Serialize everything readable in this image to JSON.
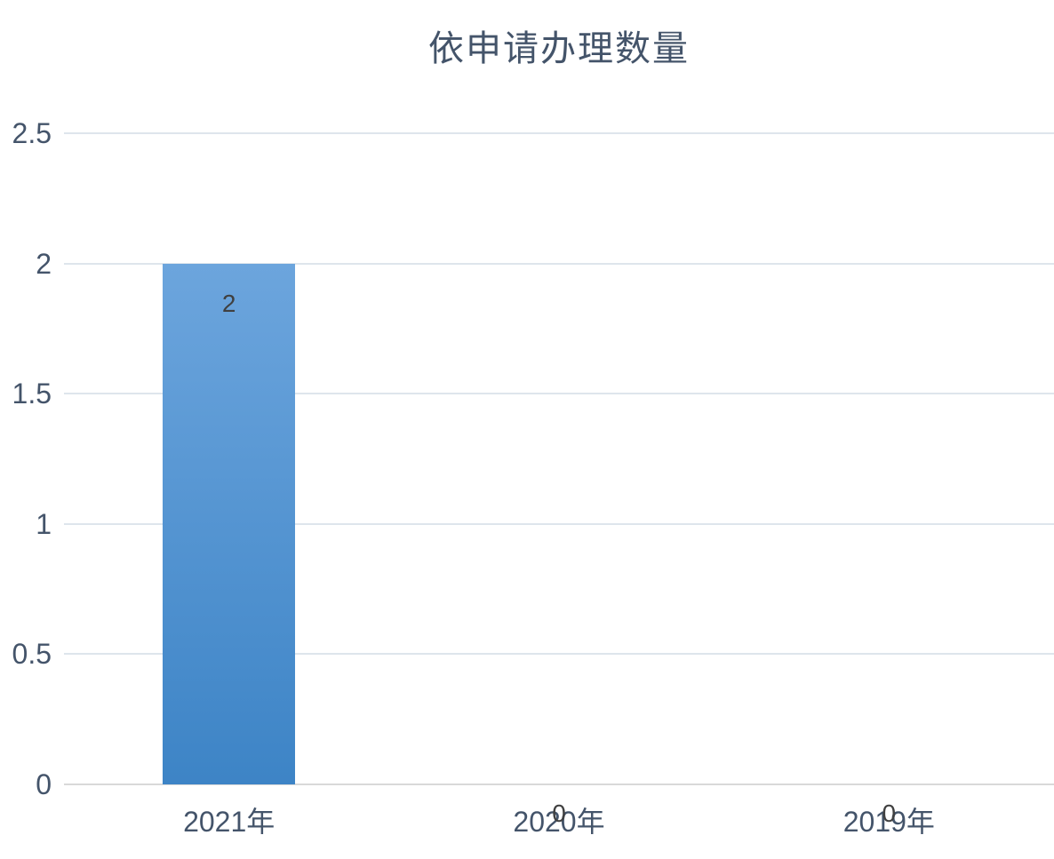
{
  "chart_data": {
    "type": "bar",
    "title": "依申请办理数量",
    "categories": [
      "2021年",
      "2020年",
      "2019年"
    ],
    "values": [
      2,
      0,
      0
    ],
    "data_labels": [
      "2",
      "0",
      "0"
    ],
    "series": [
      {
        "name": "依申请办理数量",
        "values": [
          2,
          0,
          0
        ]
      }
    ],
    "y_ticks": [
      "0",
      "0.5",
      "1",
      "1.5",
      "2",
      "2.5"
    ],
    "y_tick_values": [
      0,
      0.5,
      1,
      1.5,
      2,
      2.5
    ],
    "ylim": [
      0,
      2.5
    ],
    "xlabel": "",
    "ylabel": "",
    "grid": "horizontal-only",
    "legend": "none",
    "data_label_position": "inside-end",
    "colors": {
      "bar_gradient_top": "#6CA5DD",
      "bar_gradient_bottom": "#3D84C6",
      "axis_text": "#44546A",
      "title_text": "#44546A",
      "data_label_text": "#404040",
      "gridline": "#DEE5EC",
      "baseline": "#D9D9D9",
      "background": "#FFFFFF"
    }
  }
}
